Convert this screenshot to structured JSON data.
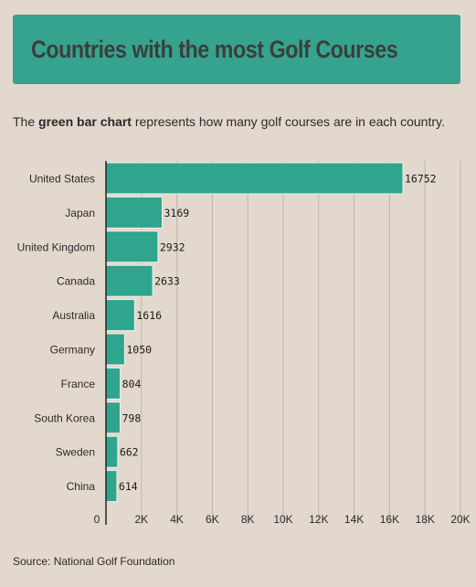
{
  "header": {
    "title": "Countries with the most Golf Courses"
  },
  "subtitle": {
    "prefix": "The ",
    "emphasis": "green bar chart",
    "suffix": " represents how many golf courses are in each country."
  },
  "source": "Source: National Golf Foundation",
  "colors": {
    "background": "#e3d8ce",
    "banner": "#36a38e",
    "bar": "#2fa58e",
    "bar_stroke": "#f4efe9",
    "grid": "#bfb5ad",
    "axis": "#222222"
  },
  "chart_data": {
    "type": "bar",
    "orientation": "horizontal",
    "categories": [
      "United States",
      "Japan",
      "United Kingdom",
      "Canada",
      "Australia",
      "Germany",
      "France",
      "South Korea",
      "Sweden",
      "China"
    ],
    "values": [
      16752,
      3169,
      2932,
      2633,
      1616,
      1050,
      804,
      798,
      662,
      614
    ],
    "data_labels": [
      "16752",
      "3169",
      "2932",
      "2633",
      "1616",
      "1050",
      "804",
      "798",
      "662",
      "614"
    ],
    "x_ticks": [
      0,
      2000,
      4000,
      6000,
      8000,
      10000,
      12000,
      14000,
      16000,
      18000,
      20000
    ],
    "x_tick_labels": [
      "0",
      "2K",
      "4K",
      "6K",
      "8K",
      "10K",
      "12K",
      "14K",
      "16K",
      "18K",
      "20K"
    ],
    "xlim": [
      0,
      20000
    ],
    "grid": true
  }
}
